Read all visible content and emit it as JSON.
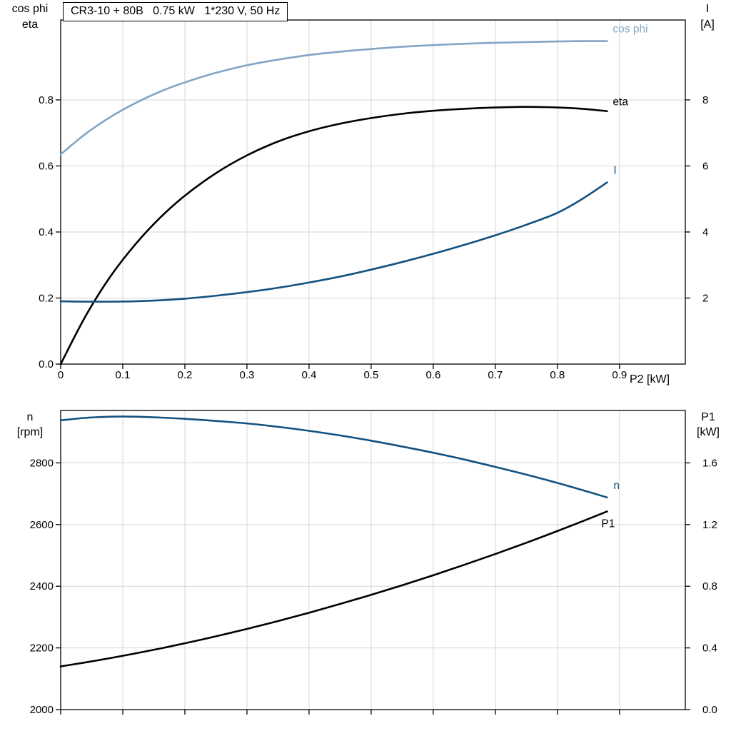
{
  "title_box": {
    "text": "CR3-10 + 80B   0.75 kW   1*230 V, 50 Hz"
  },
  "colors": {
    "grid": "#d6d6d6",
    "axis": "#000000",
    "light_blue": "#82a5c6",
    "dark_blue": "#125180",
    "black": "#000000"
  },
  "chart_data": [
    {
      "type": "line",
      "title": "CR3-10 + 80B  0.75 kW  1*230 V, 50 Hz",
      "xlabel": "P2 [kW]",
      "ylabel_left": [
        "cos phi",
        "eta"
      ],
      "ylabel_right": [
        "I",
        "[A]"
      ],
      "xlim": [
        0,
        1.006
      ],
      "xticks": [
        0,
        0.1,
        0.2,
        0.3,
        0.4,
        0.5,
        0.6,
        0.7,
        0.8,
        0.9
      ],
      "xtick_labels": [
        "0",
        "0.1",
        "0.2",
        "0.3",
        "0.4",
        "0.5",
        "0.6",
        "0.7",
        "0.8",
        "0.9"
      ],
      "show_xtick_labels": true,
      "ylim_left": [
        0,
        1.042
      ],
      "yticks_left": [
        0.0,
        0.2,
        0.4,
        0.6,
        0.8
      ],
      "ytick_labels_left": [
        "0.0",
        "0.2",
        "0.4",
        "0.6",
        "0.8"
      ],
      "ylim_right": [
        0,
        10.42
      ],
      "yticks_right": [
        2,
        4,
        6,
        8
      ],
      "ytick_labels_right": [
        "2",
        "4",
        "6",
        "8"
      ],
      "grid": true,
      "x": [
        0,
        0.04,
        0.08,
        0.12,
        0.16,
        0.2,
        0.25,
        0.3,
        0.35,
        0.4,
        0.45,
        0.5,
        0.55,
        0.6,
        0.65,
        0.7,
        0.75,
        0.8,
        0.84,
        0.88
      ],
      "series": [
        {
          "name": "cos phi",
          "axis": "left",
          "color": "#82a5c6",
          "values": [
            0.635,
            0.697,
            0.748,
            0.79,
            0.825,
            0.853,
            0.882,
            0.905,
            0.922,
            0.936,
            0.946,
            0.954,
            0.961,
            0.966,
            0.97,
            0.973,
            0.975,
            0.977,
            0.978,
            0.978
          ]
        },
        {
          "name": "eta",
          "axis": "left",
          "color": "#000000",
          "values": [
            0.0,
            0.145,
            0.265,
            0.362,
            0.443,
            0.51,
            0.578,
            0.632,
            0.674,
            0.705,
            0.728,
            0.745,
            0.758,
            0.767,
            0.773,
            0.777,
            0.779,
            0.777,
            0.773,
            0.766
          ]
        },
        {
          "name": "I",
          "axis": "right",
          "color": "#125180",
          "values": [
            1.9,
            1.89,
            1.89,
            1.9,
            1.93,
            1.98,
            2.07,
            2.18,
            2.31,
            2.47,
            2.65,
            2.86,
            3.09,
            3.34,
            3.61,
            3.9,
            4.22,
            4.58,
            5.0,
            5.5
          ]
        }
      ]
    },
    {
      "type": "line",
      "title": "",
      "xlabel": "",
      "ylabel_left": [
        "n",
        "[rpm]"
      ],
      "ylabel_right": [
        "P1",
        "[kW]"
      ],
      "xlim": [
        0,
        1.006
      ],
      "xticks": [
        0,
        0.1,
        0.2,
        0.3,
        0.4,
        0.5,
        0.6,
        0.7,
        0.8,
        0.9
      ],
      "show_xtick_labels": false,
      "ylim_left": [
        2000,
        2970
      ],
      "yticks_left": [
        2000,
        2200,
        2400,
        2600,
        2800
      ],
      "ytick_labels_left": [
        "2000",
        "2200",
        "2400",
        "2600",
        "2800"
      ],
      "ylim_right": [
        0,
        1.94
      ],
      "yticks_right": [
        0.0,
        0.4,
        0.8,
        1.2,
        1.6
      ],
      "ytick_labels_right": [
        "0.0",
        "0.4",
        "0.8",
        "1.2",
        "1.6"
      ],
      "grid": true,
      "x": [
        0,
        0.04,
        0.08,
        0.12,
        0.16,
        0.2,
        0.25,
        0.3,
        0.35,
        0.4,
        0.45,
        0.5,
        0.55,
        0.6,
        0.65,
        0.7,
        0.75,
        0.8,
        0.84,
        0.88
      ],
      "series": [
        {
          "name": "n",
          "axis": "left",
          "color": "#125180",
          "values": [
            2938,
            2946,
            2950,
            2950,
            2947,
            2943,
            2936,
            2928,
            2917,
            2904,
            2889,
            2872,
            2853,
            2833,
            2811,
            2787,
            2762,
            2735,
            2712,
            2688
          ]
        },
        {
          "name": "P1",
          "axis": "right",
          "color": "#000000",
          "values": [
            0.28,
            0.306,
            0.334,
            0.364,
            0.396,
            0.43,
            0.475,
            0.523,
            0.574,
            0.628,
            0.685,
            0.744,
            0.806,
            0.871,
            0.939,
            1.009,
            1.082,
            1.158,
            1.221,
            1.285
          ]
        }
      ]
    }
  ]
}
